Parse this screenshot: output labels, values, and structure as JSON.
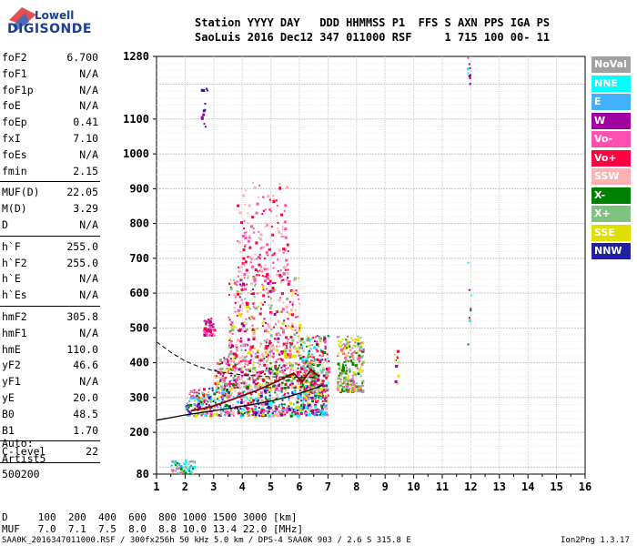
{
  "logo": {
    "top": "Lowell",
    "bottom": "DIGISONDE"
  },
  "header": {
    "line1": "Station YYYY DAY   DDD HHMMSS P1  FFS S AXN PPS IGA PS",
    "line2": "SaoLuis 2016 Dec12 347 011000 RSF     1 715 100 00- 11"
  },
  "params_group1": [
    {
      "name": "foF2",
      "value": "6.700"
    },
    {
      "name": "foF1",
      "value": "N/A"
    },
    {
      "name": "foF1p",
      "value": "N/A"
    },
    {
      "name": "foE",
      "value": "N/A"
    },
    {
      "name": "foEp",
      "value": "0.41"
    },
    {
      "name": "fxI",
      "value": "7.10"
    },
    {
      "name": "foEs",
      "value": "N/A"
    },
    {
      "name": "fmin",
      "value": "2.15"
    }
  ],
  "params_group2": [
    {
      "name": "MUF(D)",
      "value": "22.05"
    },
    {
      "name": "M(D)",
      "value": "3.29"
    },
    {
      "name": "D",
      "value": "N/A"
    }
  ],
  "params_group3": [
    {
      "name": "h`F",
      "value": "255.0"
    },
    {
      "name": "h`F2",
      "value": "255.0"
    },
    {
      "name": "h`E",
      "value": "N/A"
    },
    {
      "name": "h`Es",
      "value": "N/A"
    }
  ],
  "params_group4": [
    {
      "name": "hmF2",
      "value": "305.8"
    },
    {
      "name": "hmF1",
      "value": "N/A"
    },
    {
      "name": "hmE",
      "value": "110.0"
    },
    {
      "name": "yF2",
      "value": "46.6"
    },
    {
      "name": "yF1",
      "value": "N/A"
    },
    {
      "name": "yE",
      "value": "20.0"
    },
    {
      "name": "B0",
      "value": "48.5"
    },
    {
      "name": "B1",
      "value": "1.70"
    }
  ],
  "params_group5": [
    {
      "name": "C-level",
      "value": "22"
    }
  ],
  "scaling": {
    "line1": "Auto:",
    "line2": "Artist5",
    "line3": "500200"
  },
  "legend": [
    {
      "label": "NoVal",
      "color": "#a0a0a0"
    },
    {
      "label": "NNE",
      "color": "#00ffff"
    },
    {
      "label": "E",
      "color": "#40b0ff"
    },
    {
      "label": "W",
      "color": "#a000a0"
    },
    {
      "label": "Vo-",
      "color": "#ff50b0"
    },
    {
      "label": "Vo+",
      "color": "#ff0040"
    },
    {
      "label": "SSW",
      "color": "#ffb0b0"
    },
    {
      "label": "X-",
      "color": "#008000"
    },
    {
      "label": "X+",
      "color": "#80c080"
    },
    {
      "label": "SSE",
      "color": "#e0e000"
    },
    {
      "label": "NNW",
      "color": "#2020a0"
    }
  ],
  "footer": {
    "row1": "D     100  200  400  600  800 1000 1500 3000 [km]",
    "row2": "MUF   7.0  7.1  7.5  8.0  8.8 10.0 13.4 22.0 [MHz]",
    "file": "SAA0K_2016347011000.RSF / 300fx256h 50 kHz 5.0 km / DPS-4 SAA0K 903 / 2.6 S 315.8 E",
    "version": "Ion2Png 1.3.17"
  },
  "chart_data": {
    "type": "scatter",
    "xlim": [
      1,
      16
    ],
    "ylim": [
      80,
      1280
    ],
    "x_ticks": [
      1,
      2,
      3,
      4,
      5,
      6,
      7,
      8,
      9,
      10,
      11,
      12,
      13,
      14,
      15,
      16
    ],
    "y_ticks": [
      80,
      200,
      300,
      400,
      500,
      600,
      700,
      800,
      900,
      1000,
      1100,
      1280
    ],
    "grid": true,
    "legend_placement": "right",
    "trace_x_frame": [
      1.0,
      1.5,
      2.0,
      2.5,
      3.0,
      3.5,
      4.0,
      4.5,
      5.0,
      5.5,
      6.0,
      6.3,
      6.6,
      6.9
    ],
    "trace_x_solid": [
      1.0,
      1.5,
      2.0,
      2.5,
      3.0,
      3.5,
      4.0,
      4.5,
      5.0,
      5.5,
      6.0,
      6.5,
      6.8
    ],
    "trace_y_solid": [
      235,
      242,
      250,
      256,
      262,
      268,
      275,
      282,
      290,
      300,
      312,
      325,
      335
    ],
    "trace_x_upper": [
      2.2,
      2.6,
      3.0,
      3.5,
      4.0,
      4.5,
      5.0,
      5.5,
      5.8,
      6.1,
      6.4,
      6.7
    ],
    "trace_y_upper": [
      262,
      268,
      276,
      290,
      305,
      320,
      338,
      358,
      370,
      345,
      380,
      360
    ],
    "dashed_x": [
      1.0,
      1.5,
      2.0,
      2.5,
      3.0,
      3.5,
      4.0,
      4.5,
      5.0,
      5.5,
      6.0,
      6.5
    ],
    "dashed_y": [
      460,
      430,
      405,
      388,
      377,
      370,
      365,
      362,
      360,
      359,
      358,
      358
    ],
    "clusters": [
      {
        "x": [
          2.6,
          3.0
        ],
        "y": [
          480,
          530
        ],
        "n": 60,
        "colors": [
          "#a000a0",
          "#ff50b0",
          "#ff0040"
        ]
      },
      {
        "x": [
          2.0,
          7.0
        ],
        "y": [
          250,
          330
        ],
        "n": 700,
        "colors": [
          "#ff0040",
          "#ff50b0",
          "#a000a0",
          "#008000",
          "#2020a0",
          "#00ffff",
          "#e0e000",
          "#ffb0b0",
          "#40b0ff"
        ]
      },
      {
        "x": [
          3.0,
          6.6
        ],
        "y": [
          330,
          420
        ],
        "n": 500,
        "colors": [
          "#ff50b0",
          "#ff0040",
          "#a000a0",
          "#008000",
          "#80c080",
          "#e0e000",
          "#ffb0b0"
        ]
      },
      {
        "x": [
          3.5,
          6.0
        ],
        "y": [
          420,
          650
        ],
        "n": 400,
        "colors": [
          "#ff50b0",
          "#ff0040",
          "#ffb0b0",
          "#80c080",
          "#a000a0",
          "#e0e000"
        ]
      },
      {
        "x": [
          3.8,
          5.6
        ],
        "y": [
          650,
          920
        ],
        "n": 180,
        "colors": [
          "#ff50b0",
          "#ff0040",
          "#ffb0b0"
        ]
      },
      {
        "x": [
          6.0,
          7.0
        ],
        "y": [
          300,
          480
        ],
        "n": 250,
        "colors": [
          "#ff50b0",
          "#ff0040",
          "#a000a0",
          "#008000",
          "#80c080",
          "#e0e000",
          "#00ffff"
        ]
      },
      {
        "x": [
          7.3,
          8.2
        ],
        "y": [
          320,
          480
        ],
        "n": 260,
        "colors": [
          "#e0e000",
          "#80c080",
          "#ff50b0",
          "#008000"
        ]
      },
      {
        "x": [
          2.55,
          2.75
        ],
        "y": [
          1080,
          1200
        ],
        "n": 14,
        "colors": [
          "#a000a0",
          "#2020a0"
        ]
      },
      {
        "x": [
          1.5,
          2.3
        ],
        "y": [
          85,
          125
        ],
        "n": 60,
        "colors": [
          "#00ffff",
          "#40b0ff",
          "#80c080",
          "#e0e000",
          "#008000",
          "#ff50b0"
        ]
      },
      {
        "x": [
          9.3,
          9.5
        ],
        "y": [
          340,
          450
        ],
        "n": 12,
        "colors": [
          "#a000a0",
          "#ff0040",
          "#e0e000"
        ]
      },
      {
        "x": [
          11.8,
          12.05
        ],
        "y": [
          1200,
          1280
        ],
        "n": 10,
        "colors": [
          "#00ffff",
          "#40b0ff",
          "#ff50b0",
          "#a000a0"
        ]
      },
      {
        "x": [
          11.85,
          12.0
        ],
        "y": [
          420,
          700
        ],
        "n": 8,
        "colors": [
          "#a000a0",
          "#00ffff",
          "#008000"
        ]
      }
    ]
  }
}
